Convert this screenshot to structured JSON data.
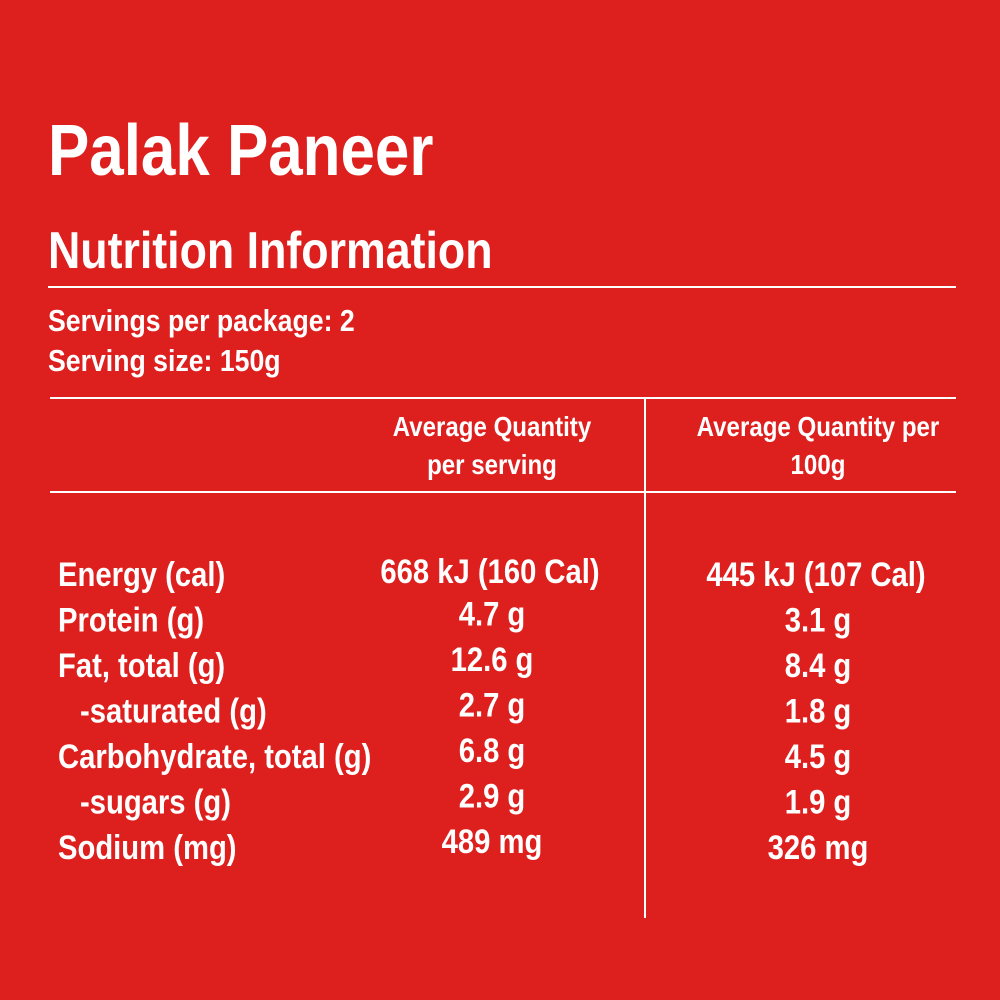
{
  "title": "Palak Paneer",
  "subtitle": "Nutrition Information",
  "servings": [
    "Servings per package: 2",
    "Serving size: 150g"
  ],
  "table": {
    "headers": [
      [
        "Average Quantity",
        "per serving"
      ],
      [
        "Average Quantity per",
        "100g"
      ]
    ],
    "rows": [
      [
        "Energy (cal)",
        "668 kJ (160 Cal)",
        "445 kJ (107 Cal)"
      ],
      [
        "Protein (g)",
        "4.7 g",
        "3.1 g"
      ],
      [
        "Fat, total (g)",
        "12.6 g",
        "8.4 g"
      ],
      [
        "-saturated (g)",
        "2.7 g",
        "1.8 g"
      ],
      [
        "Carbohydrate, total (g)",
        "6.8 g",
        "4.5 g"
      ],
      [
        "-sugars (g)",
        "2.9 g",
        "1.9 g"
      ],
      [
        "Sodium (mg)",
        "489 mg",
        "326 mg"
      ]
    ]
  }
}
